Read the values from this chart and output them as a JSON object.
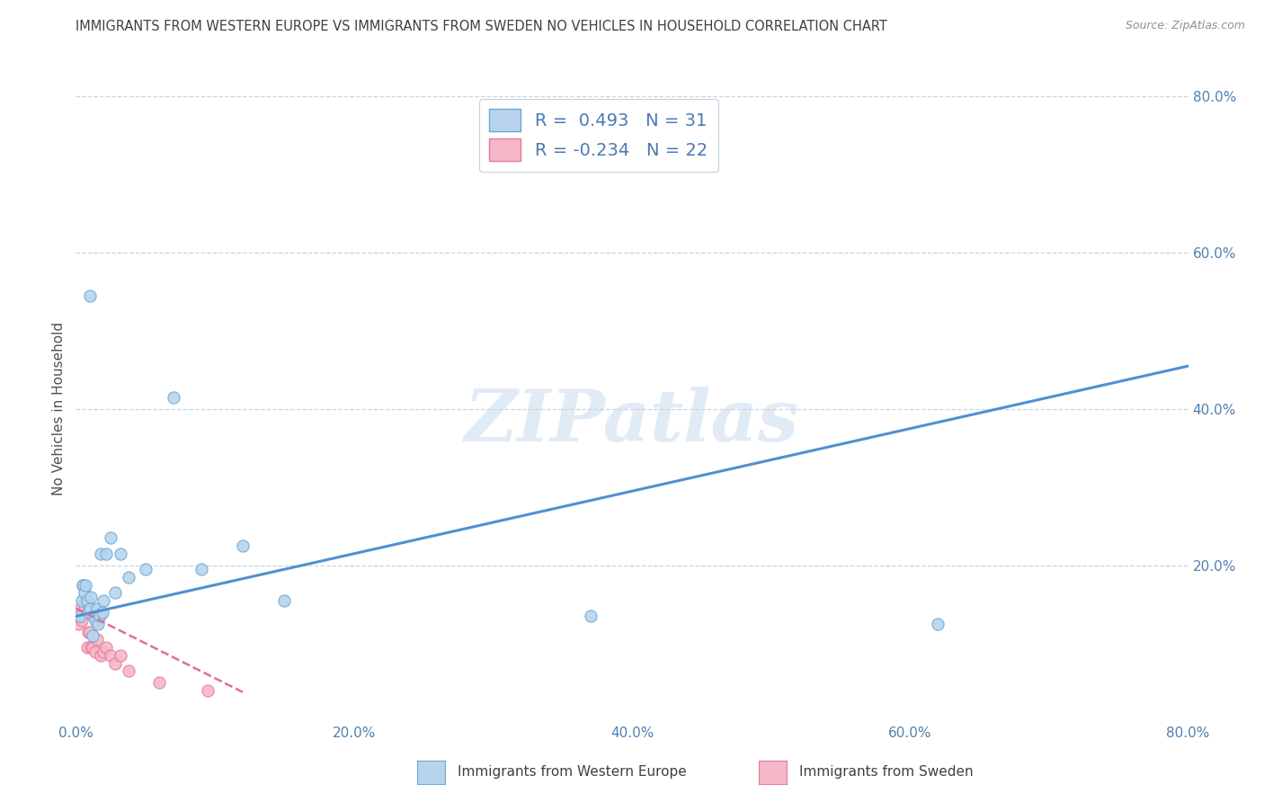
{
  "title": "IMMIGRANTS FROM WESTERN EUROPE VS IMMIGRANTS FROM SWEDEN NO VEHICLES IN HOUSEHOLD CORRELATION CHART",
  "source": "Source: ZipAtlas.com",
  "ylabel": "No Vehicles in Household",
  "legend_label1": "Immigrants from Western Europe",
  "legend_label2": "Immigrants from Sweden",
  "R1": 0.493,
  "N1": 31,
  "R2": -0.234,
  "N2": 22,
  "color_blue_fill": "#b8d4ed",
  "color_blue_edge": "#6aaad4",
  "color_pink_fill": "#f5b8c8",
  "color_pink_edge": "#e87898",
  "color_line_blue": "#5090d0",
  "color_line_pink": "#e07090",
  "xlim": [
    0.0,
    0.8
  ],
  "ylim": [
    0.0,
    0.8
  ],
  "xticks": [
    0.0,
    0.2,
    0.4,
    0.6,
    0.8
  ],
  "yticks": [
    0.0,
    0.2,
    0.4,
    0.6,
    0.8
  ],
  "blue_x": [
    0.003,
    0.004,
    0.005,
    0.006,
    0.007,
    0.008,
    0.009,
    0.01,
    0.011,
    0.012,
    0.013,
    0.014,
    0.015,
    0.016,
    0.017,
    0.018,
    0.019,
    0.02,
    0.022,
    0.025,
    0.028,
    0.032,
    0.038,
    0.05,
    0.07,
    0.09,
    0.12,
    0.15,
    0.37,
    0.62,
    0.01
  ],
  "blue_y": [
    0.135,
    0.155,
    0.175,
    0.165,
    0.175,
    0.155,
    0.14,
    0.145,
    0.16,
    0.11,
    0.135,
    0.13,
    0.145,
    0.125,
    0.135,
    0.215,
    0.14,
    0.155,
    0.215,
    0.235,
    0.165,
    0.215,
    0.185,
    0.195,
    0.415,
    0.195,
    0.225,
    0.155,
    0.135,
    0.125,
    0.545
  ],
  "pink_x": [
    0.002,
    0.003,
    0.004,
    0.005,
    0.006,
    0.007,
    0.008,
    0.009,
    0.01,
    0.011,
    0.012,
    0.014,
    0.015,
    0.018,
    0.02,
    0.022,
    0.025,
    0.028,
    0.032,
    0.038,
    0.06,
    0.095
  ],
  "pink_y": [
    0.125,
    0.145,
    0.13,
    0.175,
    0.145,
    0.155,
    0.095,
    0.115,
    0.115,
    0.095,
    0.095,
    0.09,
    0.105,
    0.085,
    0.09,
    0.095,
    0.085,
    0.075,
    0.085,
    0.065,
    0.05,
    0.04
  ],
  "blue_line_x0": 0.0,
  "blue_line_y0": 0.135,
  "blue_line_x1": 0.8,
  "blue_line_y1": 0.455,
  "pink_line_x0": 0.0,
  "pink_line_y0": 0.145,
  "pink_line_x1": 0.12,
  "pink_line_y1": 0.038,
  "watermark": "ZIPatlas",
  "background_color": "#ffffff",
  "grid_color": "#c8d4e4",
  "title_color": "#404040",
  "axis_label_color": "#5080b0",
  "legend_text_color": "#4a7ab0"
}
